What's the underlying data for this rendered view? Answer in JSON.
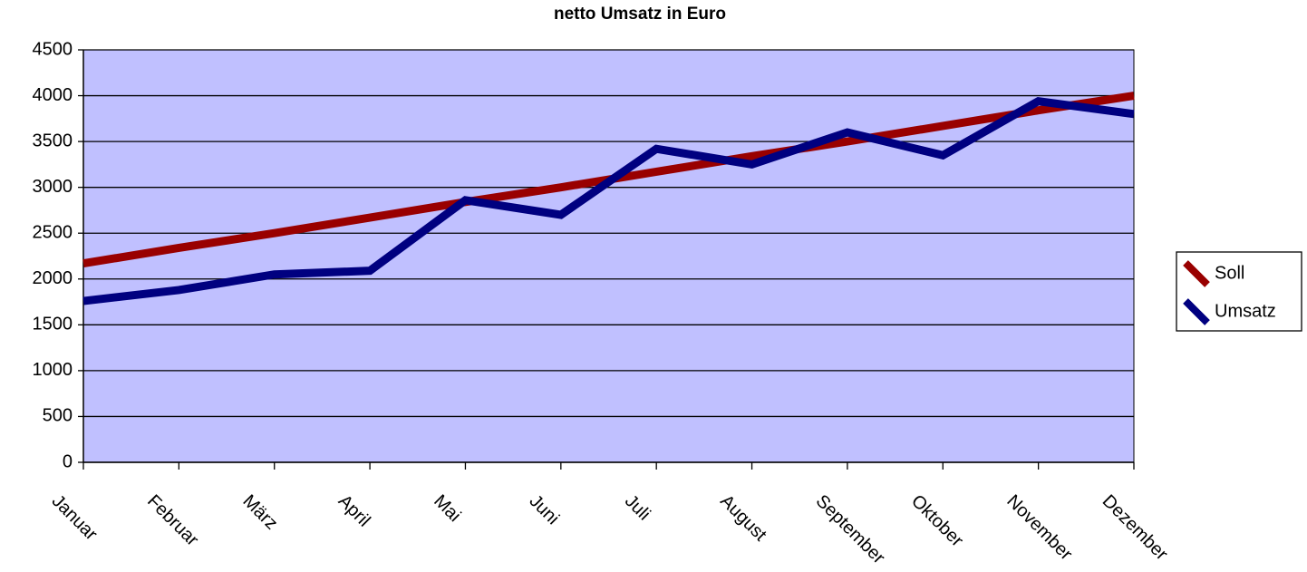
{
  "chart_data": {
    "type": "line",
    "title": "netto Umsatz in Euro",
    "categories": [
      "Januar",
      "Februar",
      "März",
      "April",
      "Mai",
      "Juni",
      "Juli",
      "August",
      "September",
      "Oktober",
      "November",
      "Dezember"
    ],
    "series": [
      {
        "name": "Soll",
        "color": "#990000",
        "values": [
          2170,
          2340,
          2500,
          2670,
          2840,
          3000,
          3170,
          3340,
          3500,
          3670,
          3840,
          4000
        ]
      },
      {
        "name": "Umsatz",
        "color": "#000080",
        "values": [
          1760,
          1880,
          2050,
          2090,
          2860,
          2700,
          3420,
          3250,
          3600,
          3350,
          3940,
          3800
        ]
      }
    ],
    "ylim": [
      0,
      4500
    ],
    "yticks": [
      0,
      500,
      1000,
      1500,
      2000,
      2500,
      3000,
      3500,
      4000,
      4500
    ],
    "grid": true,
    "legend": "right",
    "plot_background": "#c0c0ff"
  }
}
